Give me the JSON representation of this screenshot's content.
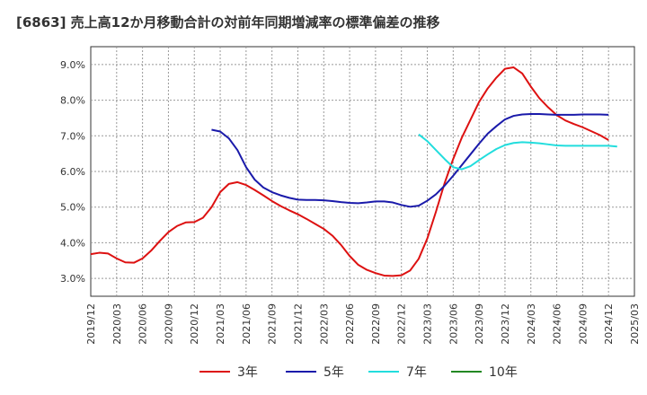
{
  "chart_data": {
    "type": "line",
    "title": "[6863]  売上高12か月移動合計の対前年同期増減率の標準偏差の推移",
    "xlabel": "",
    "ylabel": "",
    "ylim": [
      2.5,
      9.5
    ],
    "y_ticks": [
      "3.0%",
      "4.0%",
      "5.0%",
      "6.0%",
      "7.0%",
      "8.0%",
      "9.0%"
    ],
    "y_tick_values": [
      3.0,
      4.0,
      5.0,
      6.0,
      7.0,
      8.0,
      9.0
    ],
    "x_ticks": [
      "2019/12",
      "2020/03",
      "2020/06",
      "2020/09",
      "2020/12",
      "2021/03",
      "2021/06",
      "2021/09",
      "2021/12",
      "2022/03",
      "2022/06",
      "2022/09",
      "2022/12",
      "2023/03",
      "2023/06",
      "2023/09",
      "2023/12",
      "2024/03",
      "2024/06",
      "2024/09",
      "2024/12",
      "2025/03"
    ],
    "grid": true,
    "legend_position": "bottom",
    "series": [
      {
        "name": "3年",
        "color": "#dd1111",
        "start_index": 0,
        "values": [
          3.68,
          3.72,
          3.7,
          3.56,
          3.45,
          3.44,
          3.56,
          3.78,
          4.05,
          4.3,
          4.47,
          4.57,
          4.58,
          4.7,
          5.0,
          5.42,
          5.65,
          5.7,
          5.62,
          5.48,
          5.33,
          5.17,
          5.03,
          4.91,
          4.8,
          4.67,
          4.53,
          4.39,
          4.2,
          3.94,
          3.63,
          3.38,
          3.24,
          3.15,
          3.08,
          3.07,
          3.09,
          3.22,
          3.55,
          4.12,
          4.87,
          5.67,
          6.35,
          6.95,
          7.45,
          7.95,
          8.33,
          8.63,
          8.88,
          8.92,
          8.75,
          8.38,
          8.05,
          7.8,
          7.58,
          7.43,
          7.33,
          7.24,
          7.13,
          7.02,
          6.88
        ]
      },
      {
        "name": "5年",
        "color": "#1a1aaa",
        "start_index": 14,
        "values": [
          7.17,
          7.12,
          6.93,
          6.6,
          6.12,
          5.77,
          5.55,
          5.42,
          5.33,
          5.26,
          5.21,
          5.2,
          5.2,
          5.19,
          5.17,
          5.14,
          5.12,
          5.11,
          5.13,
          5.16,
          5.16,
          5.13,
          5.06,
          5.01,
          5.04,
          5.18,
          5.36,
          5.6,
          5.88,
          6.18,
          6.48,
          6.78,
          7.06,
          7.27,
          7.46,
          7.56,
          7.6,
          7.61,
          7.61,
          7.6,
          7.59,
          7.59,
          7.59,
          7.6,
          7.6,
          7.6,
          7.59
        ]
      },
      {
        "name": "7年",
        "color": "#22dddd",
        "start_index": 38,
        "values": [
          7.04,
          6.85,
          6.6,
          6.35,
          6.12,
          6.06,
          6.15,
          6.32,
          6.48,
          6.63,
          6.74,
          6.8,
          6.82,
          6.81,
          6.79,
          6.76,
          6.73,
          6.72,
          6.72,
          6.72,
          6.72,
          6.72,
          6.72,
          6.7
        ]
      },
      {
        "name": "10年",
        "color": "#228822",
        "start_index": 0,
        "values": []
      }
    ]
  }
}
